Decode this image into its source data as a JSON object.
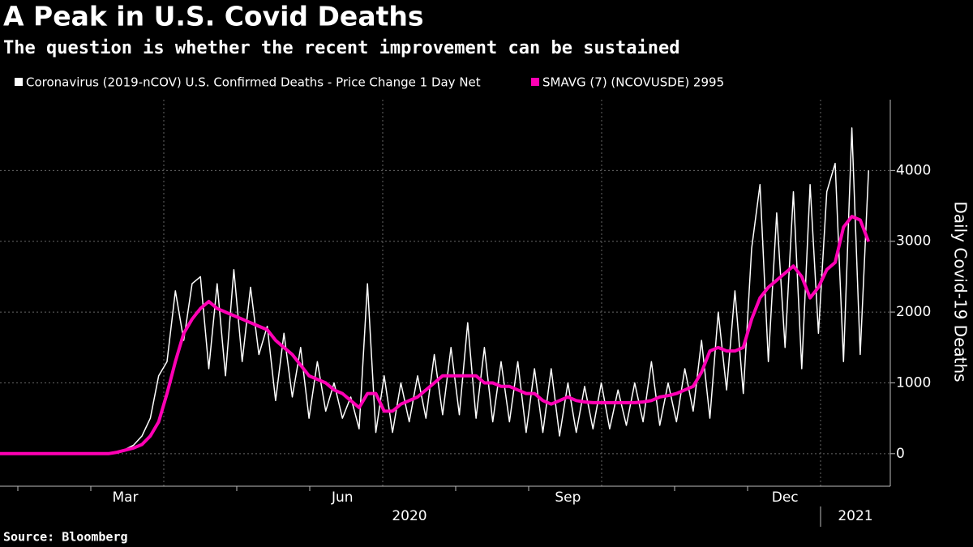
{
  "chart_data": {
    "type": "line",
    "title": "A Peak in U.S. Covid Deaths",
    "subtitle": "The question is whether the recent improvement can be sustained",
    "source": "Source: Bloomberg",
    "y_axis_label": "Daily Covid-19 Deaths",
    "years": [
      "2020",
      "2021"
    ],
    "categories": [
      null,
      null,
      null,
      null,
      null,
      null,
      null,
      null,
      null,
      null,
      null,
      null,
      null,
      null,
      null,
      "Mar",
      null,
      null,
      null,
      null,
      null,
      null,
      null,
      null,
      null,
      null,
      null,
      null,
      null,
      null,
      null,
      null,
      null,
      null,
      null,
      null,
      null,
      null,
      null,
      null,
      null,
      "Jun",
      null,
      null,
      null,
      null,
      null,
      null,
      null,
      null,
      null,
      null,
      null,
      null,
      null,
      null,
      null,
      null,
      null,
      null,
      null,
      null,
      null,
      null,
      null,
      null,
      null,
      null,
      "Sep",
      null,
      null,
      null,
      null,
      null,
      null,
      null,
      null,
      null,
      null,
      null,
      null,
      null,
      null,
      null,
      null,
      null,
      null,
      null,
      null,
      null,
      null,
      null,
      null,
      null,
      "Dec",
      null,
      null,
      null,
      null,
      null,
      null,
      null,
      null,
      null,
      null
    ],
    "series": [
      {
        "name": "Coronavirus (2019-nCOV) U.S. Confirmed Deaths - Price Change 1 Day Net",
        "color": "#ffffff",
        "values": [
          0,
          0,
          0,
          0,
          0,
          0,
          0,
          0,
          0,
          0,
          0,
          0,
          0,
          0,
          20,
          60,
          120,
          250,
          500,
          1100,
          1300,
          2300,
          1600,
          2400,
          2500,
          1200,
          2400,
          1100,
          2600,
          1300,
          2350,
          1400,
          1800,
          750,
          1700,
          800,
          1500,
          500,
          1300,
          600,
          1000,
          500,
          800,
          350,
          2400,
          300,
          1100,
          300,
          1000,
          450,
          1100,
          500,
          1400,
          550,
          1500,
          550,
          1850,
          500,
          1500,
          450,
          1300,
          450,
          1300,
          300,
          1200,
          300,
          1200,
          250,
          1000,
          300,
          950,
          350,
          1000,
          350,
          900,
          400,
          1000,
          450,
          1300,
          400,
          1000,
          450,
          1200,
          600,
          1600,
          500,
          2000,
          900,
          2300,
          850,
          2900,
          3800,
          1300,
          3400,
          1500,
          3700,
          1200,
          3800,
          1700,
          3700,
          4100,
          1300,
          4600,
          1400,
          4000
        ]
      },
      {
        "name": "SMAVG (7) (NCOVUSDE) 2995",
        "color": "#ff00b4",
        "values": [
          0,
          0,
          0,
          0,
          0,
          0,
          0,
          0,
          0,
          0,
          0,
          0,
          0,
          0,
          20,
          50,
          80,
          130,
          250,
          450,
          850,
          1300,
          1700,
          1900,
          2050,
          2150,
          2050,
          2000,
          1950,
          1900,
          1850,
          1800,
          1750,
          1600,
          1500,
          1400,
          1250,
          1100,
          1050,
          1000,
          900,
          850,
          750,
          650,
          850,
          850,
          600,
          600,
          700,
          750,
          800,
          900,
          1000,
          1100,
          1100,
          1100,
          1100,
          1100,
          1000,
          1000,
          950,
          950,
          900,
          850,
          850,
          750,
          700,
          750,
          800,
          750,
          730,
          720,
          720,
          720,
          720,
          720,
          720,
          730,
          750,
          800,
          820,
          850,
          900,
          950,
          1150,
          1450,
          1500,
          1450,
          1450,
          1500,
          1900,
          2200,
          2350,
          2450,
          2550,
          2650,
          2500,
          2200,
          2350,
          2600,
          2700,
          3200,
          3350,
          3300,
          2995
        ]
      }
    ],
    "ylim": [
      -460,
      5000
    ],
    "yticks": [
      0,
      1000,
      2000,
      3000,
      4000
    ],
    "grid": true
  }
}
